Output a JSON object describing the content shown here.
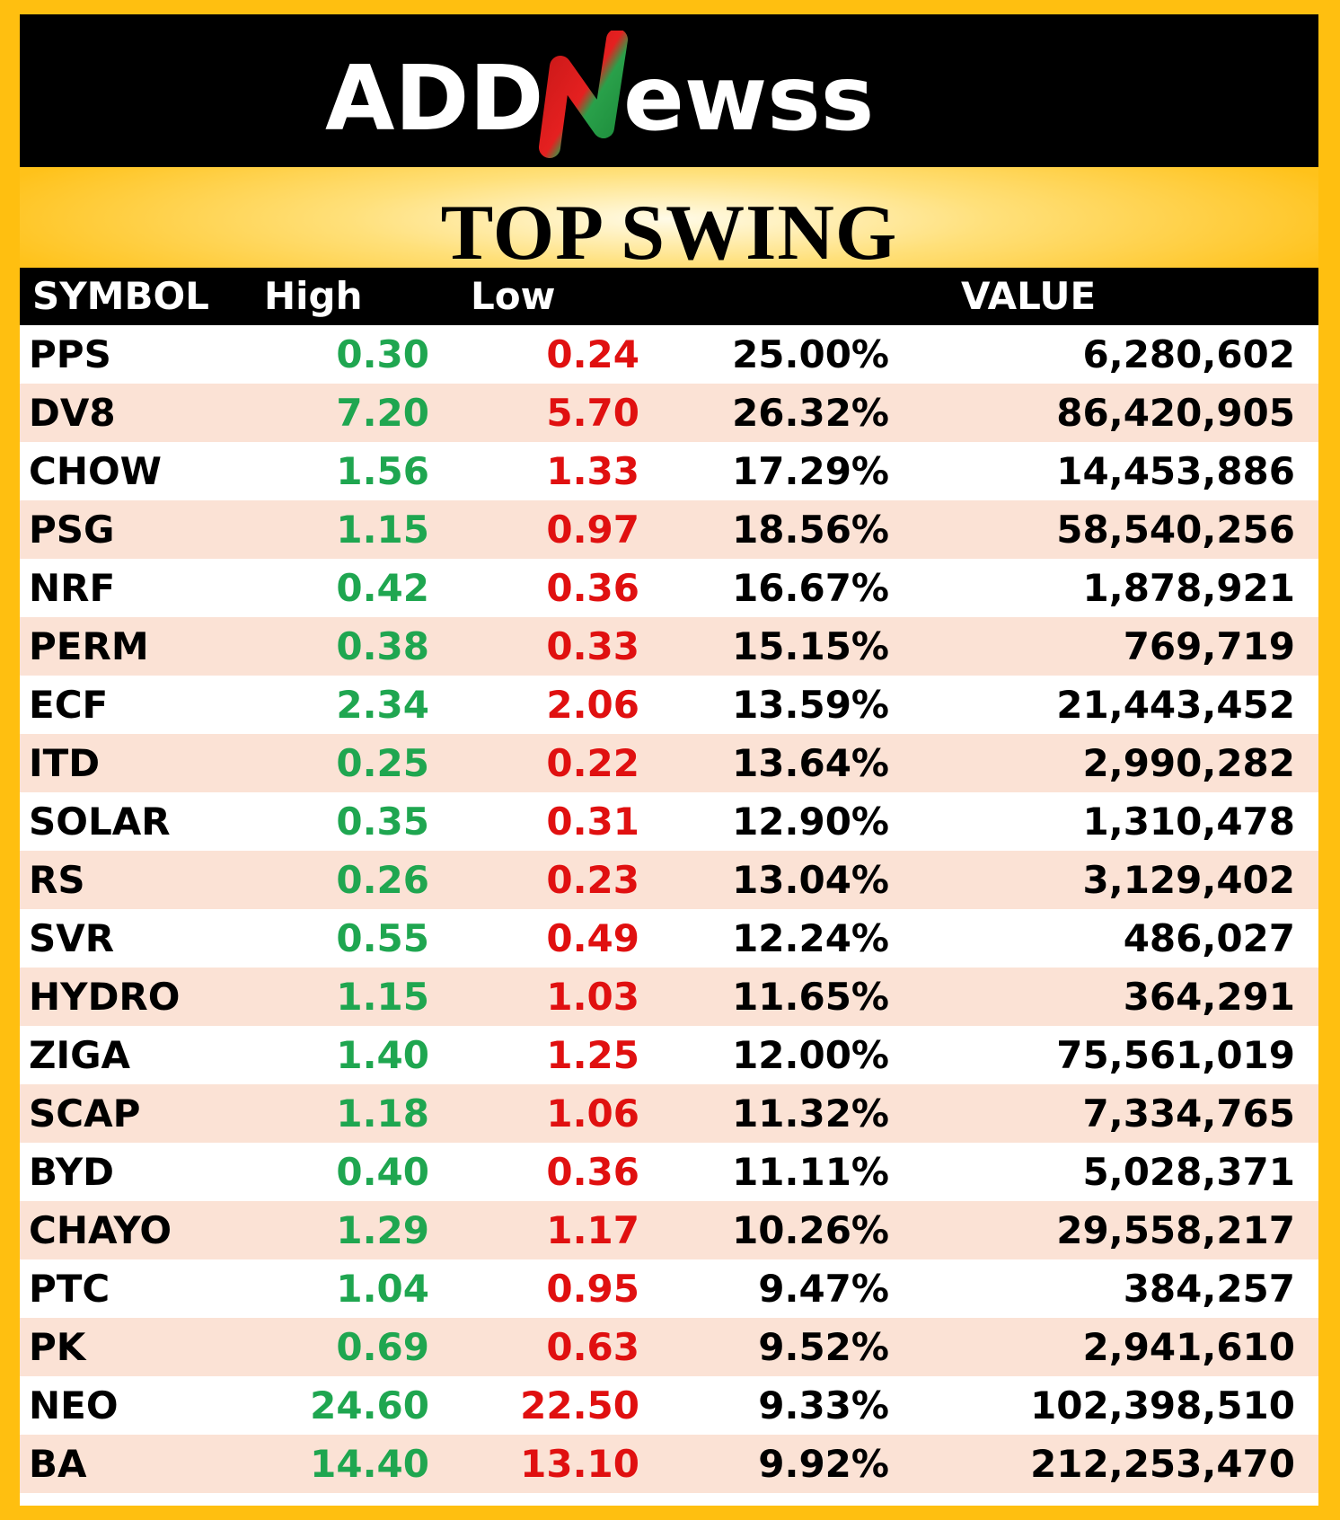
{
  "brand": {
    "name": "ADDNEWSS",
    "part1": "ADD",
    "part2": "ewss"
  },
  "title": "TOP SWING",
  "headers": {
    "symbol": "SYMBOL",
    "high": "High",
    "low": "Low",
    "pct": "",
    "value": "VALUE"
  },
  "colors": {
    "high": "#1fa650",
    "low": "#e01010",
    "frame": "#ffbf10",
    "alt_row": "#fbe2d5"
  },
  "rows": [
    {
      "symbol": "PPS",
      "high": "0.30",
      "low": "0.24",
      "pct": "25.00%",
      "value": "6,280,602"
    },
    {
      "symbol": "DV8",
      "high": "7.20",
      "low": "5.70",
      "pct": "26.32%",
      "value": "86,420,905"
    },
    {
      "symbol": "CHOW",
      "high": "1.56",
      "low": "1.33",
      "pct": "17.29%",
      "value": "14,453,886"
    },
    {
      "symbol": "PSG",
      "high": "1.15",
      "low": "0.97",
      "pct": "18.56%",
      "value": "58,540,256"
    },
    {
      "symbol": "NRF",
      "high": "0.42",
      "low": "0.36",
      "pct": "16.67%",
      "value": "1,878,921"
    },
    {
      "symbol": "PERM",
      "high": "0.38",
      "low": "0.33",
      "pct": "15.15%",
      "value": "769,719"
    },
    {
      "symbol": "ECF",
      "high": "2.34",
      "low": "2.06",
      "pct": "13.59%",
      "value": "21,443,452"
    },
    {
      "symbol": "ITD",
      "high": "0.25",
      "low": "0.22",
      "pct": "13.64%",
      "value": "2,990,282"
    },
    {
      "symbol": "SOLAR",
      "high": "0.35",
      "low": "0.31",
      "pct": "12.90%",
      "value": "1,310,478"
    },
    {
      "symbol": "RS",
      "high": "0.26",
      "low": "0.23",
      "pct": "13.04%",
      "value": "3,129,402"
    },
    {
      "symbol": "SVR",
      "high": "0.55",
      "low": "0.49",
      "pct": "12.24%",
      "value": "486,027"
    },
    {
      "symbol": "HYDRO",
      "high": "1.15",
      "low": "1.03",
      "pct": "11.65%",
      "value": "364,291"
    },
    {
      "symbol": "ZIGA",
      "high": "1.40",
      "low": "1.25",
      "pct": "12.00%",
      "value": "75,561,019"
    },
    {
      "symbol": "SCAP",
      "high": "1.18",
      "low": "1.06",
      "pct": "11.32%",
      "value": "7,334,765"
    },
    {
      "symbol": "BYD",
      "high": "0.40",
      "low": "0.36",
      "pct": "11.11%",
      "value": "5,028,371"
    },
    {
      "symbol": "CHAYO",
      "high": "1.29",
      "low": "1.17",
      "pct": "10.26%",
      "value": "29,558,217"
    },
    {
      "symbol": "PTC",
      "high": "1.04",
      "low": "0.95",
      "pct": "9.47%",
      "value": "384,257"
    },
    {
      "symbol": "PK",
      "high": "0.69",
      "low": "0.63",
      "pct": "9.52%",
      "value": "2,941,610"
    },
    {
      "symbol": "NEO",
      "high": "24.60",
      "low": "22.50",
      "pct": "9.33%",
      "value": "102,398,510"
    },
    {
      "symbol": "BA",
      "high": "14.40",
      "low": "13.10",
      "pct": "9.92%",
      "value": "212,253,470"
    }
  ]
}
